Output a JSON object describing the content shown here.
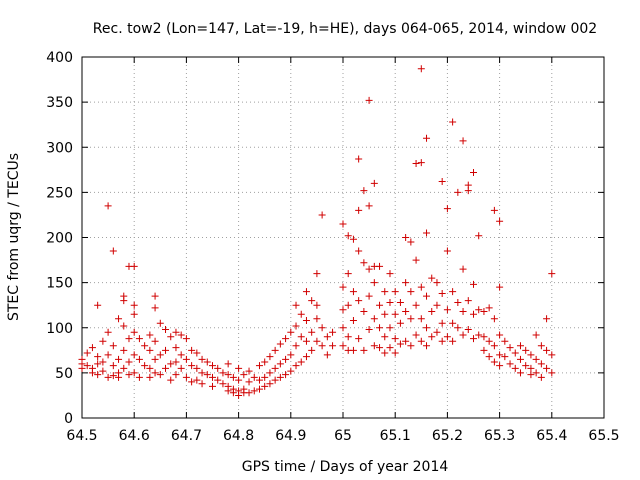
{
  "chart_data": {
    "type": "scatter",
    "title": "Rec. tow2 (Lon=147, Lat=-19, h=HE), days 064-065, 2014, window 002",
    "xlabel": "GPS time / Days of year 2014",
    "ylabel": "STEC from uqrg / TECUs",
    "xlim": [
      64.5,
      65.5
    ],
    "ylim": [
      0,
      400
    ],
    "xticks": [
      64.5,
      64.6,
      64.7,
      64.8,
      64.9,
      65.0,
      65.1,
      65.2,
      65.3,
      65.4,
      65.5
    ],
    "xtick_labels": [
      "64.5",
      "64.6",
      "64.7",
      "64.8",
      "64.9",
      "65",
      "65.1",
      "65.2",
      "65.3",
      "65.4",
      "65.5"
    ],
    "yticks": [
      0,
      50,
      100,
      150,
      200,
      250,
      300,
      350,
      400
    ],
    "ytick_labels": [
      "0",
      "50",
      "100",
      "150",
      "200",
      "250",
      "300",
      "350",
      "400"
    ],
    "grid": true,
    "marker": "+",
    "color": "#d00000",
    "points": [
      [
        64.5,
        60
      ],
      [
        64.5,
        55
      ],
      [
        64.5,
        65
      ],
      [
        64.51,
        72
      ],
      [
        64.51,
        58
      ],
      [
        64.52,
        55
      ],
      [
        64.52,
        78
      ],
      [
        64.52,
        50
      ],
      [
        64.53,
        68
      ],
      [
        64.53,
        60
      ],
      [
        64.53,
        48
      ],
      [
        64.53,
        125
      ],
      [
        64.54,
        85
      ],
      [
        64.54,
        62
      ],
      [
        64.54,
        52
      ],
      [
        64.55,
        235
      ],
      [
        64.55,
        95
      ],
      [
        64.55,
        70
      ],
      [
        64.55,
        45
      ],
      [
        64.56,
        80
      ],
      [
        64.56,
        58
      ],
      [
        64.56,
        47
      ],
      [
        64.56,
        185
      ],
      [
        64.57,
        110
      ],
      [
        64.57,
        65
      ],
      [
        64.57,
        50
      ],
      [
        64.57,
        45
      ],
      [
        64.58,
        135
      ],
      [
        64.58,
        130
      ],
      [
        64.58,
        102
      ],
      [
        64.58,
        75
      ],
      [
        64.58,
        55
      ],
      [
        64.59,
        88
      ],
      [
        64.59,
        62
      ],
      [
        64.59,
        48
      ],
      [
        64.59,
        168
      ],
      [
        64.6,
        168
      ],
      [
        64.6,
        125
      ],
      [
        64.6,
        115
      ],
      [
        64.6,
        95
      ],
      [
        64.6,
        70
      ],
      [
        64.6,
        50
      ],
      [
        64.61,
        88
      ],
      [
        64.61,
        65
      ],
      [
        64.61,
        45
      ],
      [
        64.62,
        80
      ],
      [
        64.62,
        58
      ],
      [
        64.63,
        92
      ],
      [
        64.63,
        75
      ],
      [
        64.63,
        55
      ],
      [
        64.63,
        45
      ],
      [
        64.64,
        135
      ],
      [
        64.64,
        122
      ],
      [
        64.64,
        85
      ],
      [
        64.64,
        65
      ],
      [
        64.64,
        50
      ],
      [
        64.65,
        105
      ],
      [
        64.65,
        70
      ],
      [
        64.65,
        48
      ],
      [
        64.66,
        98
      ],
      [
        64.66,
        75
      ],
      [
        64.66,
        55
      ],
      [
        64.67,
        90
      ],
      [
        64.67,
        60
      ],
      [
        64.67,
        42
      ],
      [
        64.68,
        95
      ],
      [
        64.68,
        78
      ],
      [
        64.68,
        62
      ],
      [
        64.68,
        48
      ],
      [
        64.69,
        92
      ],
      [
        64.69,
        70
      ],
      [
        64.69,
        55
      ],
      [
        64.7,
        88
      ],
      [
        64.7,
        65
      ],
      [
        64.7,
        45
      ],
      [
        64.71,
        75
      ],
      [
        64.71,
        58
      ],
      [
        64.71,
        40
      ],
      [
        64.72,
        72
      ],
      [
        64.72,
        55
      ],
      [
        64.72,
        42
      ],
      [
        64.73,
        65
      ],
      [
        64.73,
        50
      ],
      [
        64.73,
        38
      ],
      [
        64.74,
        62
      ],
      [
        64.74,
        48
      ],
      [
        64.75,
        58
      ],
      [
        64.75,
        45
      ],
      [
        64.75,
        35
      ],
      [
        64.76,
        55
      ],
      [
        64.76,
        42
      ],
      [
        64.77,
        50
      ],
      [
        64.77,
        38
      ],
      [
        64.78,
        60
      ],
      [
        64.78,
        48
      ],
      [
        64.78,
        35
      ],
      [
        64.78,
        30
      ],
      [
        64.79,
        45
      ],
      [
        64.79,
        32
      ],
      [
        64.79,
        28
      ],
      [
        64.8,
        55
      ],
      [
        64.8,
        42
      ],
      [
        64.8,
        30
      ],
      [
        64.8,
        25
      ],
      [
        64.81,
        48
      ],
      [
        64.81,
        32
      ],
      [
        64.81,
        28
      ],
      [
        64.82,
        52
      ],
      [
        64.82,
        40
      ],
      [
        64.82,
        28
      ],
      [
        64.83,
        45
      ],
      [
        64.83,
        30
      ],
      [
        64.84,
        58
      ],
      [
        64.84,
        42
      ],
      [
        64.84,
        32
      ],
      [
        64.85,
        62
      ],
      [
        64.85,
        45
      ],
      [
        64.85,
        35
      ],
      [
        64.86,
        68
      ],
      [
        64.86,
        50
      ],
      [
        64.86,
        38
      ],
      [
        64.87,
        75
      ],
      [
        64.87,
        55
      ],
      [
        64.87,
        42
      ],
      [
        64.88,
        82
      ],
      [
        64.88,
        60
      ],
      [
        64.88,
        45
      ],
      [
        64.89,
        88
      ],
      [
        64.89,
        65
      ],
      [
        64.89,
        48
      ],
      [
        64.9,
        95
      ],
      [
        64.9,
        70
      ],
      [
        64.9,
        52
      ],
      [
        64.91,
        125
      ],
      [
        64.91,
        102
      ],
      [
        64.91,
        80
      ],
      [
        64.91,
        58
      ],
      [
        64.92,
        115
      ],
      [
        64.92,
        90
      ],
      [
        64.92,
        62
      ],
      [
        64.93,
        140
      ],
      [
        64.93,
        108
      ],
      [
        64.93,
        85
      ],
      [
        64.93,
        68
      ],
      [
        64.94,
        130
      ],
      [
        64.94,
        95
      ],
      [
        64.94,
        75
      ],
      [
        64.95,
        160
      ],
      [
        64.95,
        125
      ],
      [
        64.95,
        110
      ],
      [
        64.95,
        85
      ],
      [
        64.96,
        225
      ],
      [
        64.96,
        100
      ],
      [
        64.96,
        80
      ],
      [
        64.97,
        90
      ],
      [
        64.97,
        70
      ],
      [
        64.98,
        95
      ],
      [
        64.98,
        80
      ],
      [
        65.0,
        215
      ],
      [
        65.0,
        145
      ],
      [
        65.0,
        120
      ],
      [
        65.0,
        100
      ],
      [
        65.0,
        80
      ],
      [
        65.01,
        202
      ],
      [
        65.01,
        160
      ],
      [
        65.01,
        125
      ],
      [
        65.01,
        90
      ],
      [
        65.01,
        75
      ],
      [
        65.02,
        198
      ],
      [
        65.02,
        140
      ],
      [
        65.02,
        108
      ],
      [
        65.02,
        75
      ],
      [
        65.03,
        287
      ],
      [
        65.03,
        230
      ],
      [
        65.03,
        185
      ],
      [
        65.03,
        130
      ],
      [
        65.03,
        88
      ],
      [
        65.04,
        252
      ],
      [
        65.04,
        172
      ],
      [
        65.04,
        118
      ],
      [
        65.04,
        75
      ],
      [
        65.05,
        352
      ],
      [
        65.05,
        235
      ],
      [
        65.05,
        165
      ],
      [
        65.05,
        135
      ],
      [
        65.05,
        98
      ],
      [
        65.06,
        260
      ],
      [
        65.06,
        168
      ],
      [
        65.06,
        150
      ],
      [
        65.06,
        110
      ],
      [
        65.06,
        80
      ],
      [
        65.07,
        168
      ],
      [
        65.07,
        125
      ],
      [
        65.07,
        100
      ],
      [
        65.07,
        78
      ],
      [
        65.08,
        140
      ],
      [
        65.08,
        115
      ],
      [
        65.08,
        90
      ],
      [
        65.08,
        72
      ],
      [
        65.09,
        160
      ],
      [
        65.09,
        128
      ],
      [
        65.09,
        100
      ],
      [
        65.09,
        78
      ],
      [
        65.1,
        140
      ],
      [
        65.1,
        115
      ],
      [
        65.1,
        88
      ],
      [
        65.1,
        72
      ],
      [
        65.11,
        128
      ],
      [
        65.11,
        105
      ],
      [
        65.11,
        82
      ],
      [
        65.12,
        200
      ],
      [
        65.12,
        150
      ],
      [
        65.12,
        118
      ],
      [
        65.12,
        85
      ],
      [
        65.13,
        195
      ],
      [
        65.13,
        140
      ],
      [
        65.13,
        110
      ],
      [
        65.13,
        80
      ],
      [
        65.14,
        282
      ],
      [
        65.14,
        175
      ],
      [
        65.14,
        125
      ],
      [
        65.14,
        92
      ],
      [
        65.15,
        387
      ],
      [
        65.15,
        283
      ],
      [
        65.15,
        145
      ],
      [
        65.15,
        110
      ],
      [
        65.15,
        85
      ],
      [
        65.16,
        310
      ],
      [
        65.16,
        205
      ],
      [
        65.16,
        135
      ],
      [
        65.16,
        100
      ],
      [
        65.16,
        80
      ],
      [
        65.17,
        155
      ],
      [
        65.17,
        118
      ],
      [
        65.17,
        90
      ],
      [
        65.18,
        150
      ],
      [
        65.18,
        125
      ],
      [
        65.18,
        95
      ],
      [
        65.19,
        262
      ],
      [
        65.19,
        138
      ],
      [
        65.19,
        105
      ],
      [
        65.19,
        85
      ],
      [
        65.2,
        232
      ],
      [
        65.2,
        185
      ],
      [
        65.2,
        120
      ],
      [
        65.2,
        90
      ],
      [
        65.21,
        328
      ],
      [
        65.21,
        140
      ],
      [
        65.21,
        105
      ],
      [
        65.21,
        85
      ],
      [
        65.22,
        250
      ],
      [
        65.22,
        128
      ],
      [
        65.22,
        100
      ],
      [
        65.23,
        307
      ],
      [
        65.23,
        165
      ],
      [
        65.23,
        118
      ],
      [
        65.23,
        92
      ],
      [
        65.24,
        258
      ],
      [
        65.24,
        252
      ],
      [
        65.24,
        130
      ],
      [
        65.24,
        98
      ],
      [
        65.25,
        272
      ],
      [
        65.25,
        148
      ],
      [
        65.25,
        115
      ],
      [
        65.25,
        88
      ],
      [
        65.26,
        202
      ],
      [
        65.26,
        120
      ],
      [
        65.26,
        92
      ],
      [
        65.27,
        118
      ],
      [
        65.27,
        90
      ],
      [
        65.27,
        75
      ],
      [
        65.28,
        122
      ],
      [
        65.28,
        85
      ],
      [
        65.28,
        68
      ],
      [
        65.29,
        230
      ],
      [
        65.29,
        110
      ],
      [
        65.29,
        80
      ],
      [
        65.29,
        62
      ],
      [
        65.3,
        218
      ],
      [
        65.3,
        145
      ],
      [
        65.3,
        92
      ],
      [
        65.3,
        70
      ],
      [
        65.3,
        58
      ],
      [
        65.31,
        85
      ],
      [
        65.31,
        68
      ],
      [
        65.32,
        78
      ],
      [
        65.32,
        60
      ],
      [
        65.33,
        72
      ],
      [
        65.33,
        55
      ],
      [
        65.34,
        80
      ],
      [
        65.34,
        65
      ],
      [
        65.34,
        50
      ],
      [
        65.35,
        75
      ],
      [
        65.35,
        58
      ],
      [
        65.36,
        70
      ],
      [
        65.36,
        55
      ],
      [
        65.36,
        48
      ],
      [
        65.37,
        92
      ],
      [
        65.37,
        65
      ],
      [
        65.37,
        50
      ],
      [
        65.38,
        80
      ],
      [
        65.38,
        60
      ],
      [
        65.38,
        45
      ],
      [
        65.39,
        110
      ],
      [
        65.39,
        75
      ],
      [
        65.39,
        55
      ],
      [
        65.4,
        160
      ],
      [
        65.4,
        70
      ],
      [
        65.4,
        50
      ]
    ]
  }
}
